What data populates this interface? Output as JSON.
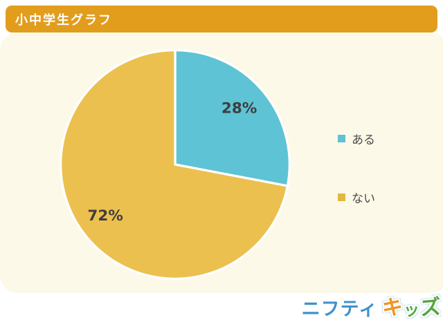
{
  "header": {
    "title": "小中学生グラフ",
    "bg_color": "#e29d1d",
    "text_color": "#ffffff"
  },
  "panel": {
    "bg_color": "#fdf9e8"
  },
  "chart_data": {
    "type": "pie",
    "title": "小中学生グラフ",
    "labels": [
      "ある",
      "ない"
    ],
    "values": [
      28,
      72
    ],
    "value_labels": [
      "28%",
      "72%"
    ],
    "colors": [
      "#5ec3d4",
      "#ecc04e"
    ],
    "label_color": "#3e3e3e",
    "start_angle": "top",
    "direction": "clockwise",
    "legend_position": "right",
    "legend_marker_colors": [
      "#5ec3d4",
      "#e2b840"
    ]
  },
  "footer_logo": {
    "brand": "ニフティ",
    "suffix": "キッズ",
    "suffix_chars": [
      "キ",
      "ッ",
      "ズ"
    ],
    "brand_color": "#4191c9",
    "suffix_colors": [
      "#f29420",
      "#56a73c",
      "#56a73c"
    ]
  }
}
